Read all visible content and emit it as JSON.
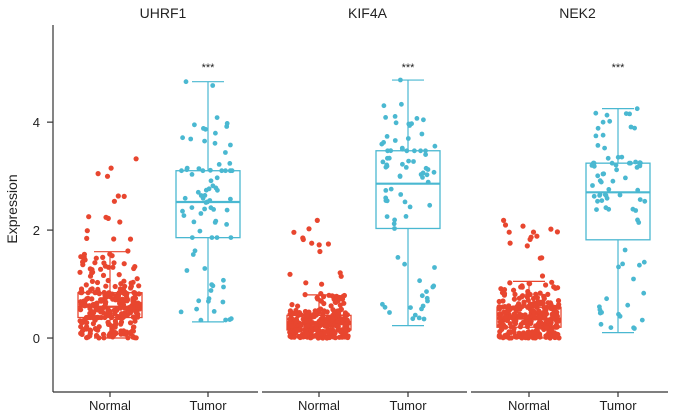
{
  "chart_data": {
    "type": "boxplot",
    "ylabel": "Expression",
    "ylim": [
      -1,
      5.8
    ],
    "yticks": [
      0,
      2,
      4
    ],
    "groups": [
      "Normal",
      "Tumor"
    ],
    "colors": {
      "Normal": "#e8462f",
      "Tumor": "#4ab8d1"
    },
    "grid": false,
    "panels": [
      {
        "title": "UHRF1",
        "significance": "***",
        "boxes": [
          {
            "group": "Normal",
            "q1": 0.38,
            "median": 0.58,
            "q3": 0.84,
            "whisker_low": 0.0,
            "whisker_high": 1.6,
            "n": 300,
            "max": 3.32
          },
          {
            "group": "Tumor",
            "q1": 1.86,
            "median": 2.52,
            "q3": 3.1,
            "whisker_low": 0.3,
            "whisker_high": 4.75,
            "n": 80,
            "max": 4.75
          }
        ]
      },
      {
        "title": "KIF4A",
        "significance": "***",
        "boxes": [
          {
            "group": "Normal",
            "q1": 0.15,
            "median": 0.26,
            "q3": 0.42,
            "whisker_low": 0.0,
            "whisker_high": 0.8,
            "n": 300,
            "max": 2.18
          },
          {
            "group": "Tumor",
            "q1": 2.03,
            "median": 2.86,
            "q3": 3.47,
            "whisker_low": 0.23,
            "whisker_high": 4.78,
            "n": 80,
            "max": 4.78
          }
        ]
      },
      {
        "title": "NEK2",
        "significance": "***",
        "boxes": [
          {
            "group": "Normal",
            "q1": 0.2,
            "median": 0.36,
            "q3": 0.57,
            "whisker_low": 0.0,
            "whisker_high": 1.05,
            "n": 300,
            "max": 2.18
          },
          {
            "group": "Tumor",
            "q1": 1.82,
            "median": 2.7,
            "q3": 3.24,
            "whisker_low": 0.1,
            "whisker_high": 4.25,
            "n": 80,
            "max": 4.25
          }
        ]
      }
    ]
  }
}
